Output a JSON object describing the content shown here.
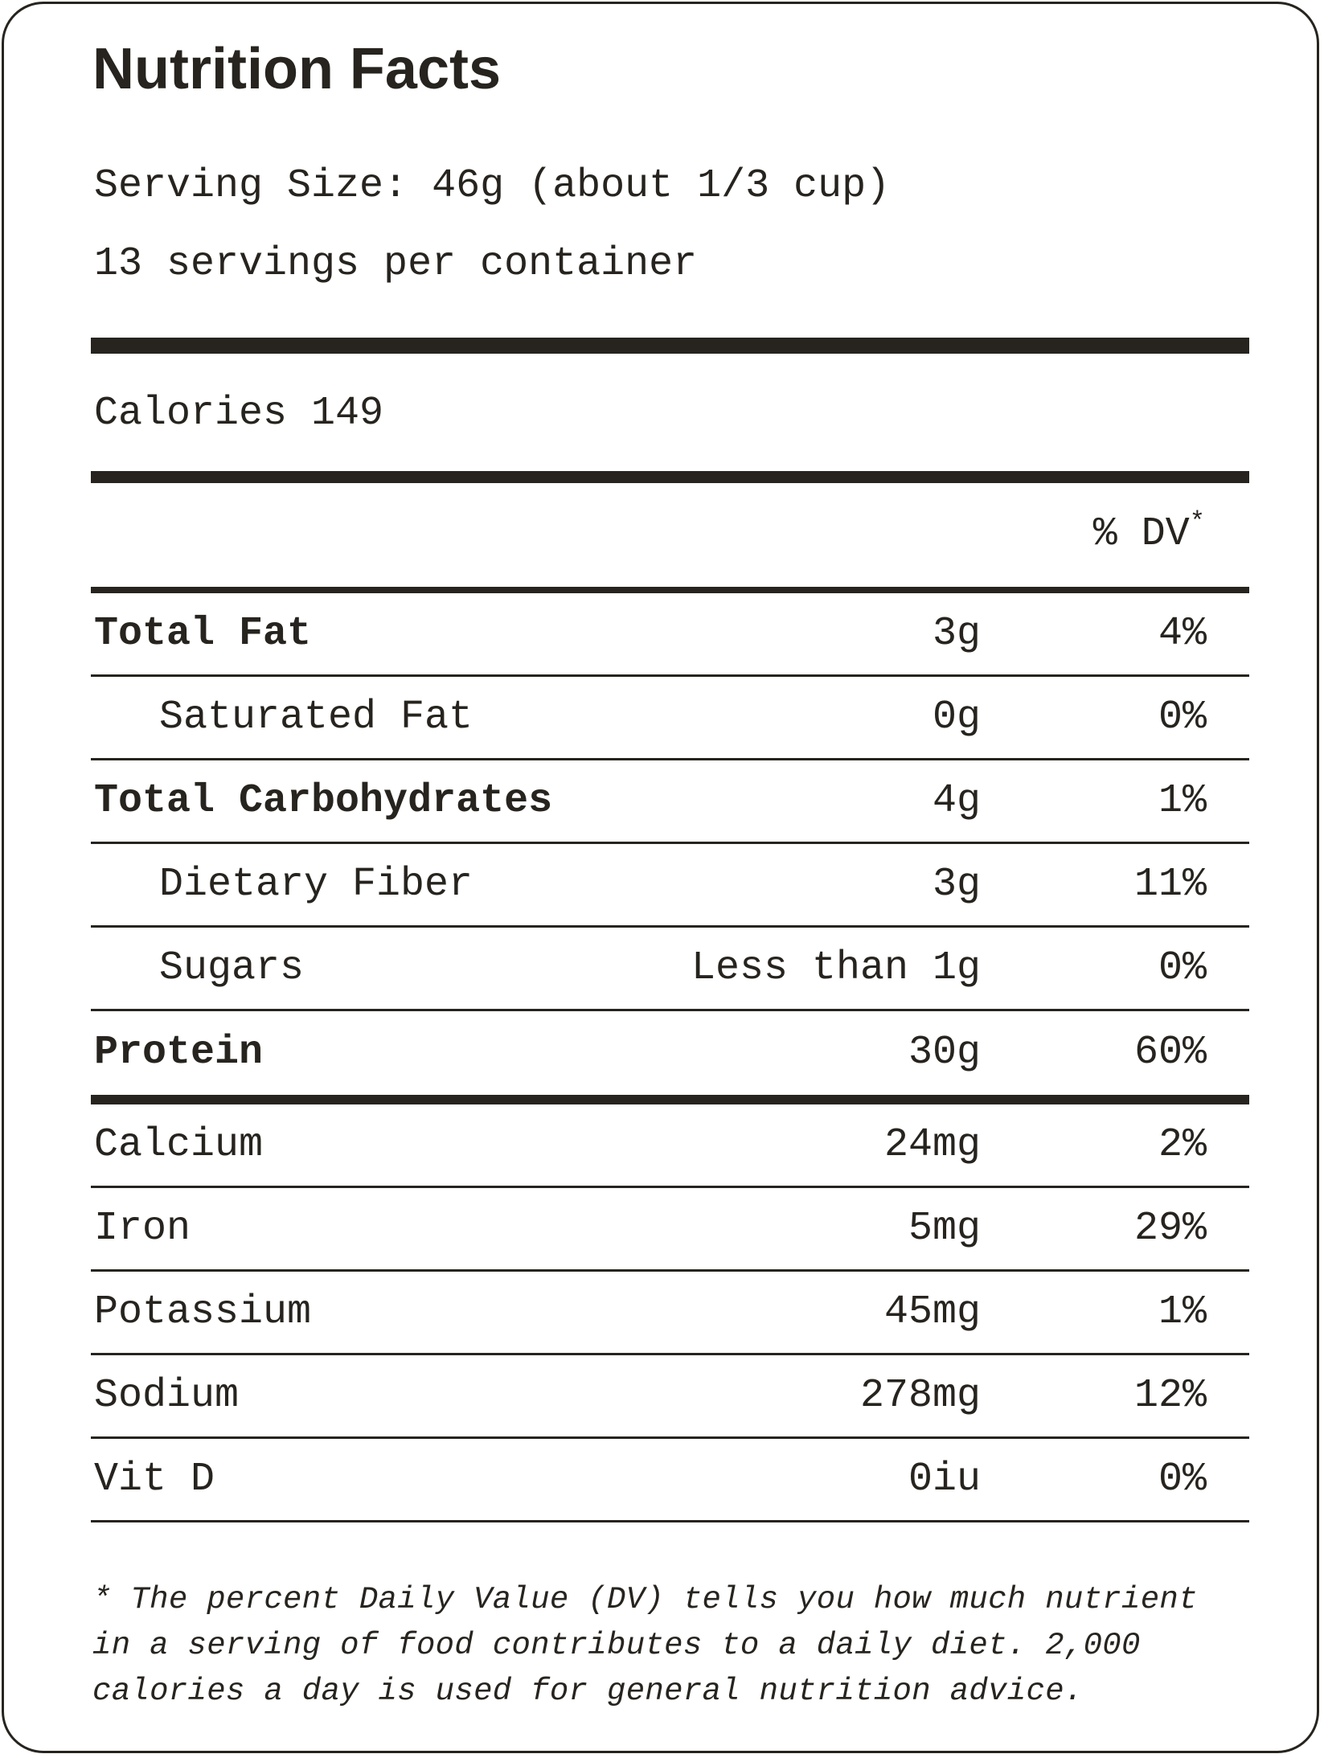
{
  "label": {
    "title": "Nutrition Facts",
    "serving_size": "Serving Size: 46g (about 1/3 cup)",
    "servings_per_container": "13 servings per container",
    "calories": "Calories 149",
    "dv_header": "% DV",
    "dv_header_mark": "*",
    "nutrients": [
      {
        "name": "Total Fat",
        "amount": "3g",
        "dv": "4%"
      },
      {
        "name": "Saturated Fat",
        "amount": "0g",
        "dv": "0%"
      },
      {
        "name": "Total Carbohydrates",
        "amount": "4g",
        "dv": "1%"
      },
      {
        "name": "Dietary Fiber",
        "amount": "3g",
        "dv": "11%"
      },
      {
        "name": "Sugars",
        "amount": "Less than 1g",
        "dv": "0%"
      },
      {
        "name": "Protein",
        "amount": "30g",
        "dv": "60%"
      }
    ],
    "minerals": [
      {
        "name": "Calcium",
        "amount": "24mg",
        "dv": "2%"
      },
      {
        "name": "Iron",
        "amount": "5mg",
        "dv": "29%"
      },
      {
        "name": "Potassium",
        "amount": "45mg",
        "dv": "1%"
      },
      {
        "name": "Sodium",
        "amount": "278mg",
        "dv": "12%"
      },
      {
        "name": "Vit D",
        "amount": "0iu",
        "dv": "0%"
      }
    ],
    "footnote": "* The percent Daily Value (DV) tells you how much nutrient in a serving of food contributes to a daily diet. 2,000 calories a day is used for general nutrition advice."
  }
}
